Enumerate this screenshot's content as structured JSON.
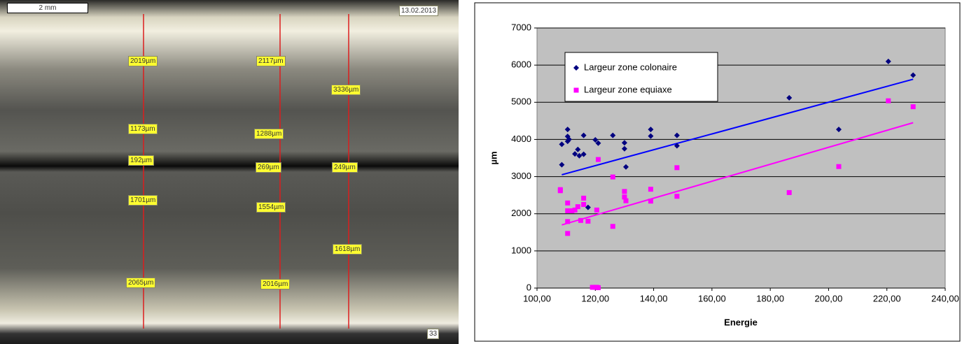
{
  "micrograph": {
    "scale": "2 mm",
    "date": "13.02.2013",
    "frame": "33",
    "labels": [
      "2019µm",
      "2117µm",
      "3336µm",
      "1173µm",
      "1288µm",
      "192µm",
      "269µm",
      "249µm",
      "1701µm",
      "1554µm",
      "1618µm",
      "2065µm",
      "2016µm"
    ]
  },
  "chart_data": {
    "type": "scatter",
    "xlabel": "Energie",
    "ylabel": "µm",
    "xlim": [
      100,
      240
    ],
    "ylim": [
      0,
      7000
    ],
    "xticks": [
      {
        "value": 100,
        "label": "100,00"
      },
      {
        "value": 120,
        "label": "120,00"
      },
      {
        "value": 140,
        "label": "140,00"
      },
      {
        "value": 160,
        "label": "160,00"
      },
      {
        "value": 180,
        "label": "180,00"
      },
      {
        "value": 200,
        "label": "200,00"
      },
      {
        "value": 220,
        "label": "220,00"
      },
      {
        "value": 240,
        "label": "240,00"
      }
    ],
    "yticks": [
      0,
      1000,
      2000,
      3000,
      4000,
      5000,
      6000,
      7000
    ],
    "grid": true,
    "legend": "upper left",
    "series": [
      {
        "name": "Largeur zone colonaire",
        "color": "#000080",
        "marker": "diamond",
        "x": [
          108.5,
          108.5,
          110.5,
          110.5,
          110.5,
          111,
          113,
          114,
          114.5,
          116,
          116,
          117.5,
          120,
          121,
          126,
          130,
          130,
          130.5,
          139,
          139,
          148,
          148,
          186.5,
          203.5,
          220.5,
          229
        ],
        "values": [
          3870,
          3320,
          4270,
          4080,
          3950,
          4000,
          3610,
          3730,
          3560,
          3600,
          4110,
          2170,
          3990,
          3900,
          4110,
          3910,
          3750,
          3260,
          4270,
          4090,
          4110,
          3830,
          5120,
          4270,
          6100,
          5730
        ]
      },
      {
        "name": "Largeur zone equiaxe",
        "color": "#ff00ff",
        "marker": "square",
        "x": [
          108,
          108,
          110.5,
          110.5,
          110.5,
          110.5,
          112,
          113,
          114,
          115,
          116,
          116,
          117.5,
          119,
          120,
          120.5,
          121,
          120.5,
          121,
          126,
          126,
          130,
          130,
          130.5,
          139,
          139,
          148,
          148,
          186.5,
          203.5,
          220.5,
          229
        ],
        "values": [
          2650,
          2620,
          2290,
          2080,
          1790,
          1470,
          2080,
          2100,
          2190,
          1820,
          2420,
          2250,
          1800,
          20,
          20,
          20,
          10,
          2100,
          3460,
          2990,
          1660,
          2600,
          2450,
          2350,
          2660,
          2340,
          3240,
          2470,
          2570,
          3270,
          5040,
          4880
        ]
      }
    ],
    "trendlines": [
      {
        "color": "#0000ff",
        "x": [
          108.5,
          229
        ],
        "values": [
          3050,
          5620
        ]
      },
      {
        "color": "#ff00ff",
        "x": [
          108.5,
          229
        ],
        "values": [
          1700,
          4450
        ]
      }
    ]
  }
}
